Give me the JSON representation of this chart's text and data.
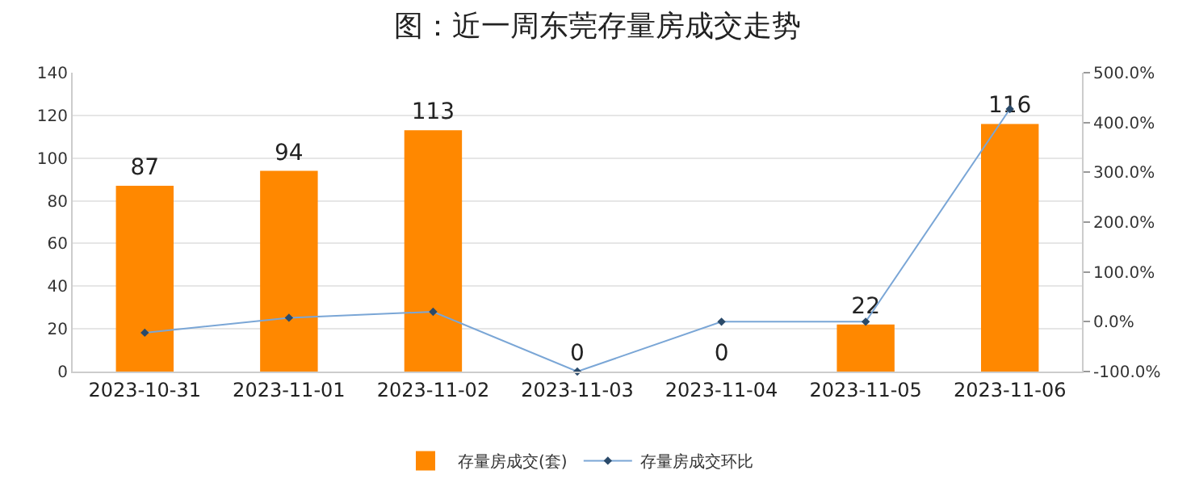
{
  "chart_data": {
    "type": "bar",
    "title": "图：近一周东莞存量房成交走势",
    "categories": [
      "2023-10-31",
      "2023-11-01",
      "2023-11-02",
      "2023-11-03",
      "2023-11-04",
      "2023-11-05",
      "2023-11-06"
    ],
    "series": [
      {
        "name": "存量房成交(套)",
        "color": "#ff8800",
        "values": [
          87,
          94,
          113,
          0,
          0,
          22,
          116
        ],
        "data_labels": true
      },
      {
        "name": "存量房成交环比",
        "type": "line",
        "axis": "y2",
        "color": "#7aa6d6",
        "marker": "diamond",
        "values": [
          -22,
          8,
          20,
          -100,
          0,
          0,
          427
        ]
      }
    ],
    "ylim": [
      0,
      140
    ],
    "yticks": [
      0,
      20,
      40,
      60,
      80,
      100,
      120,
      140
    ],
    "y2lim": [
      -100,
      500
    ],
    "y2ticks": [
      {
        "value": -100,
        "label": "-100.0%"
      },
      {
        "value": 0,
        "label": "0.0%"
      },
      {
        "value": 100,
        "label": "100.0%"
      },
      {
        "value": 200,
        "label": "200.0%"
      },
      {
        "value": 300,
        "label": "300.0%"
      },
      {
        "value": 400,
        "label": "400.0%"
      },
      {
        "value": 500,
        "label": "500.0%"
      }
    ],
    "grid": "y",
    "legend": "bottom"
  }
}
